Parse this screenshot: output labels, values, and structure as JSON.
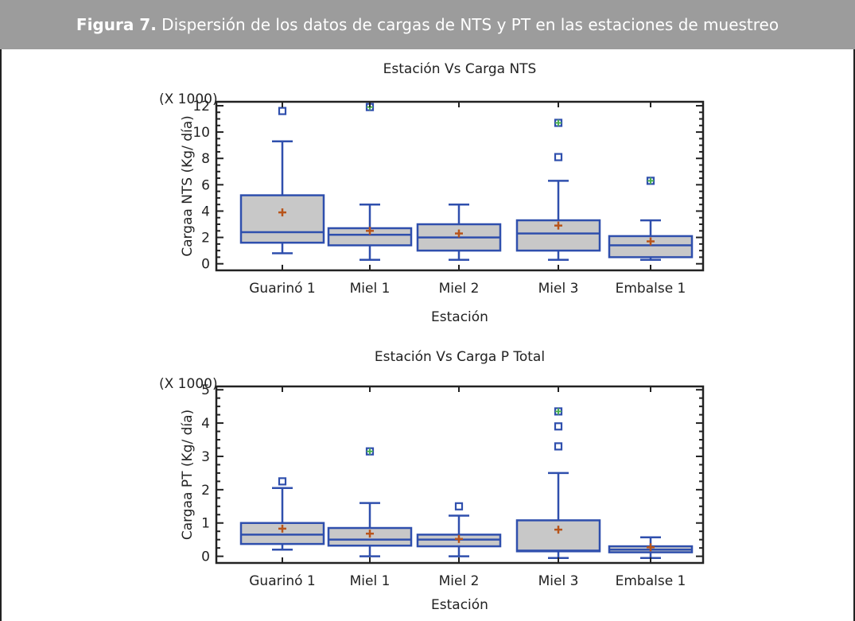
{
  "figure": {
    "label": "Figura 7.",
    "caption": " Dispersión de los datos de cargas de NTS y PT en las estaciones de muestreo"
  },
  "colors": {
    "box_fill": "#c8c8c8",
    "box_stroke": "#2f4fad",
    "mean_marker": "#b8541a",
    "outlier_extra": "#4caf50",
    "banner": "#9c9c9c"
  },
  "chart_data": [
    {
      "type": "box",
      "title": "Estación Vs Carga NTS",
      "xlabel": "Estación",
      "ylabel": "Cargaa NTS (Kg/ día)",
      "scale_note": "(X 1000)",
      "ylim": [
        -0.5,
        12.3
      ],
      "yticks": [
        0,
        2,
        4,
        6,
        8,
        10,
        12
      ],
      "categories": [
        "Guarinó 1",
        "Miel 1",
        "Miel 2",
        "Miel 3",
        "Embalse 1"
      ],
      "boxes": [
        {
          "whisker_low": 0.8,
          "q1": 1.6,
          "median": 2.4,
          "q3": 5.2,
          "whisker_high": 9.3,
          "mean": 3.9,
          "outliers": [
            11.6
          ],
          "far_outliers": []
        },
        {
          "whisker_low": 0.3,
          "q1": 1.4,
          "median": 2.2,
          "q3": 2.7,
          "whisker_high": 4.5,
          "mean": 2.5,
          "outliers": [],
          "far_outliers": [
            11.9
          ]
        },
        {
          "whisker_low": 0.3,
          "q1": 1.0,
          "median": 2.0,
          "q3": 3.0,
          "whisker_high": 4.5,
          "mean": 2.3,
          "outliers": [],
          "far_outliers": []
        },
        {
          "whisker_low": 0.3,
          "q1": 1.0,
          "median": 2.3,
          "q3": 3.3,
          "whisker_high": 6.3,
          "mean": 2.9,
          "outliers": [
            8.1
          ],
          "far_outliers": [
            10.7
          ]
        },
        {
          "whisker_low": 0.3,
          "q1": 0.5,
          "median": 1.4,
          "q3": 2.1,
          "whisker_high": 3.3,
          "mean": 1.7,
          "outliers": [],
          "far_outliers": [
            6.3
          ]
        }
      ]
    },
    {
      "type": "box",
      "title": "Estación Vs Carga P Total",
      "xlabel": "Estación",
      "ylabel": "Cargaa PT (Kg/ día)",
      "scale_note": "(X 1000)",
      "ylim": [
        -0.2,
        5.1
      ],
      "yticks": [
        0,
        1,
        2,
        3,
        4,
        5
      ],
      "categories": [
        "Guarinó 1",
        "Miel 1",
        "Miel 2",
        "Miel 3",
        "Embalse 1"
      ],
      "boxes": [
        {
          "whisker_low": 0.2,
          "q1": 0.37,
          "median": 0.65,
          "q3": 1.0,
          "whisker_high": 2.05,
          "mean": 0.83,
          "outliers": [
            2.25
          ],
          "far_outliers": []
        },
        {
          "whisker_low": 0.0,
          "q1": 0.32,
          "median": 0.5,
          "q3": 0.85,
          "whisker_high": 1.6,
          "mean": 0.68,
          "outliers": [],
          "far_outliers": [
            3.15
          ]
        },
        {
          "whisker_low": 0.0,
          "q1": 0.3,
          "median": 0.5,
          "q3": 0.65,
          "whisker_high": 1.22,
          "mean": 0.52,
          "outliers": [
            1.5
          ],
          "far_outliers": []
        },
        {
          "whisker_low": -0.05,
          "q1": 0.15,
          "median": 0.17,
          "q3": 1.08,
          "whisker_high": 2.5,
          "mean": 0.8,
          "outliers": [
            3.3,
            3.9
          ],
          "far_outliers": [
            4.35
          ]
        },
        {
          "whisker_low": -0.05,
          "q1": 0.12,
          "median": 0.2,
          "q3": 0.3,
          "whisker_high": 0.57,
          "mean": 0.27,
          "outliers": [],
          "far_outliers": []
        }
      ]
    }
  ]
}
